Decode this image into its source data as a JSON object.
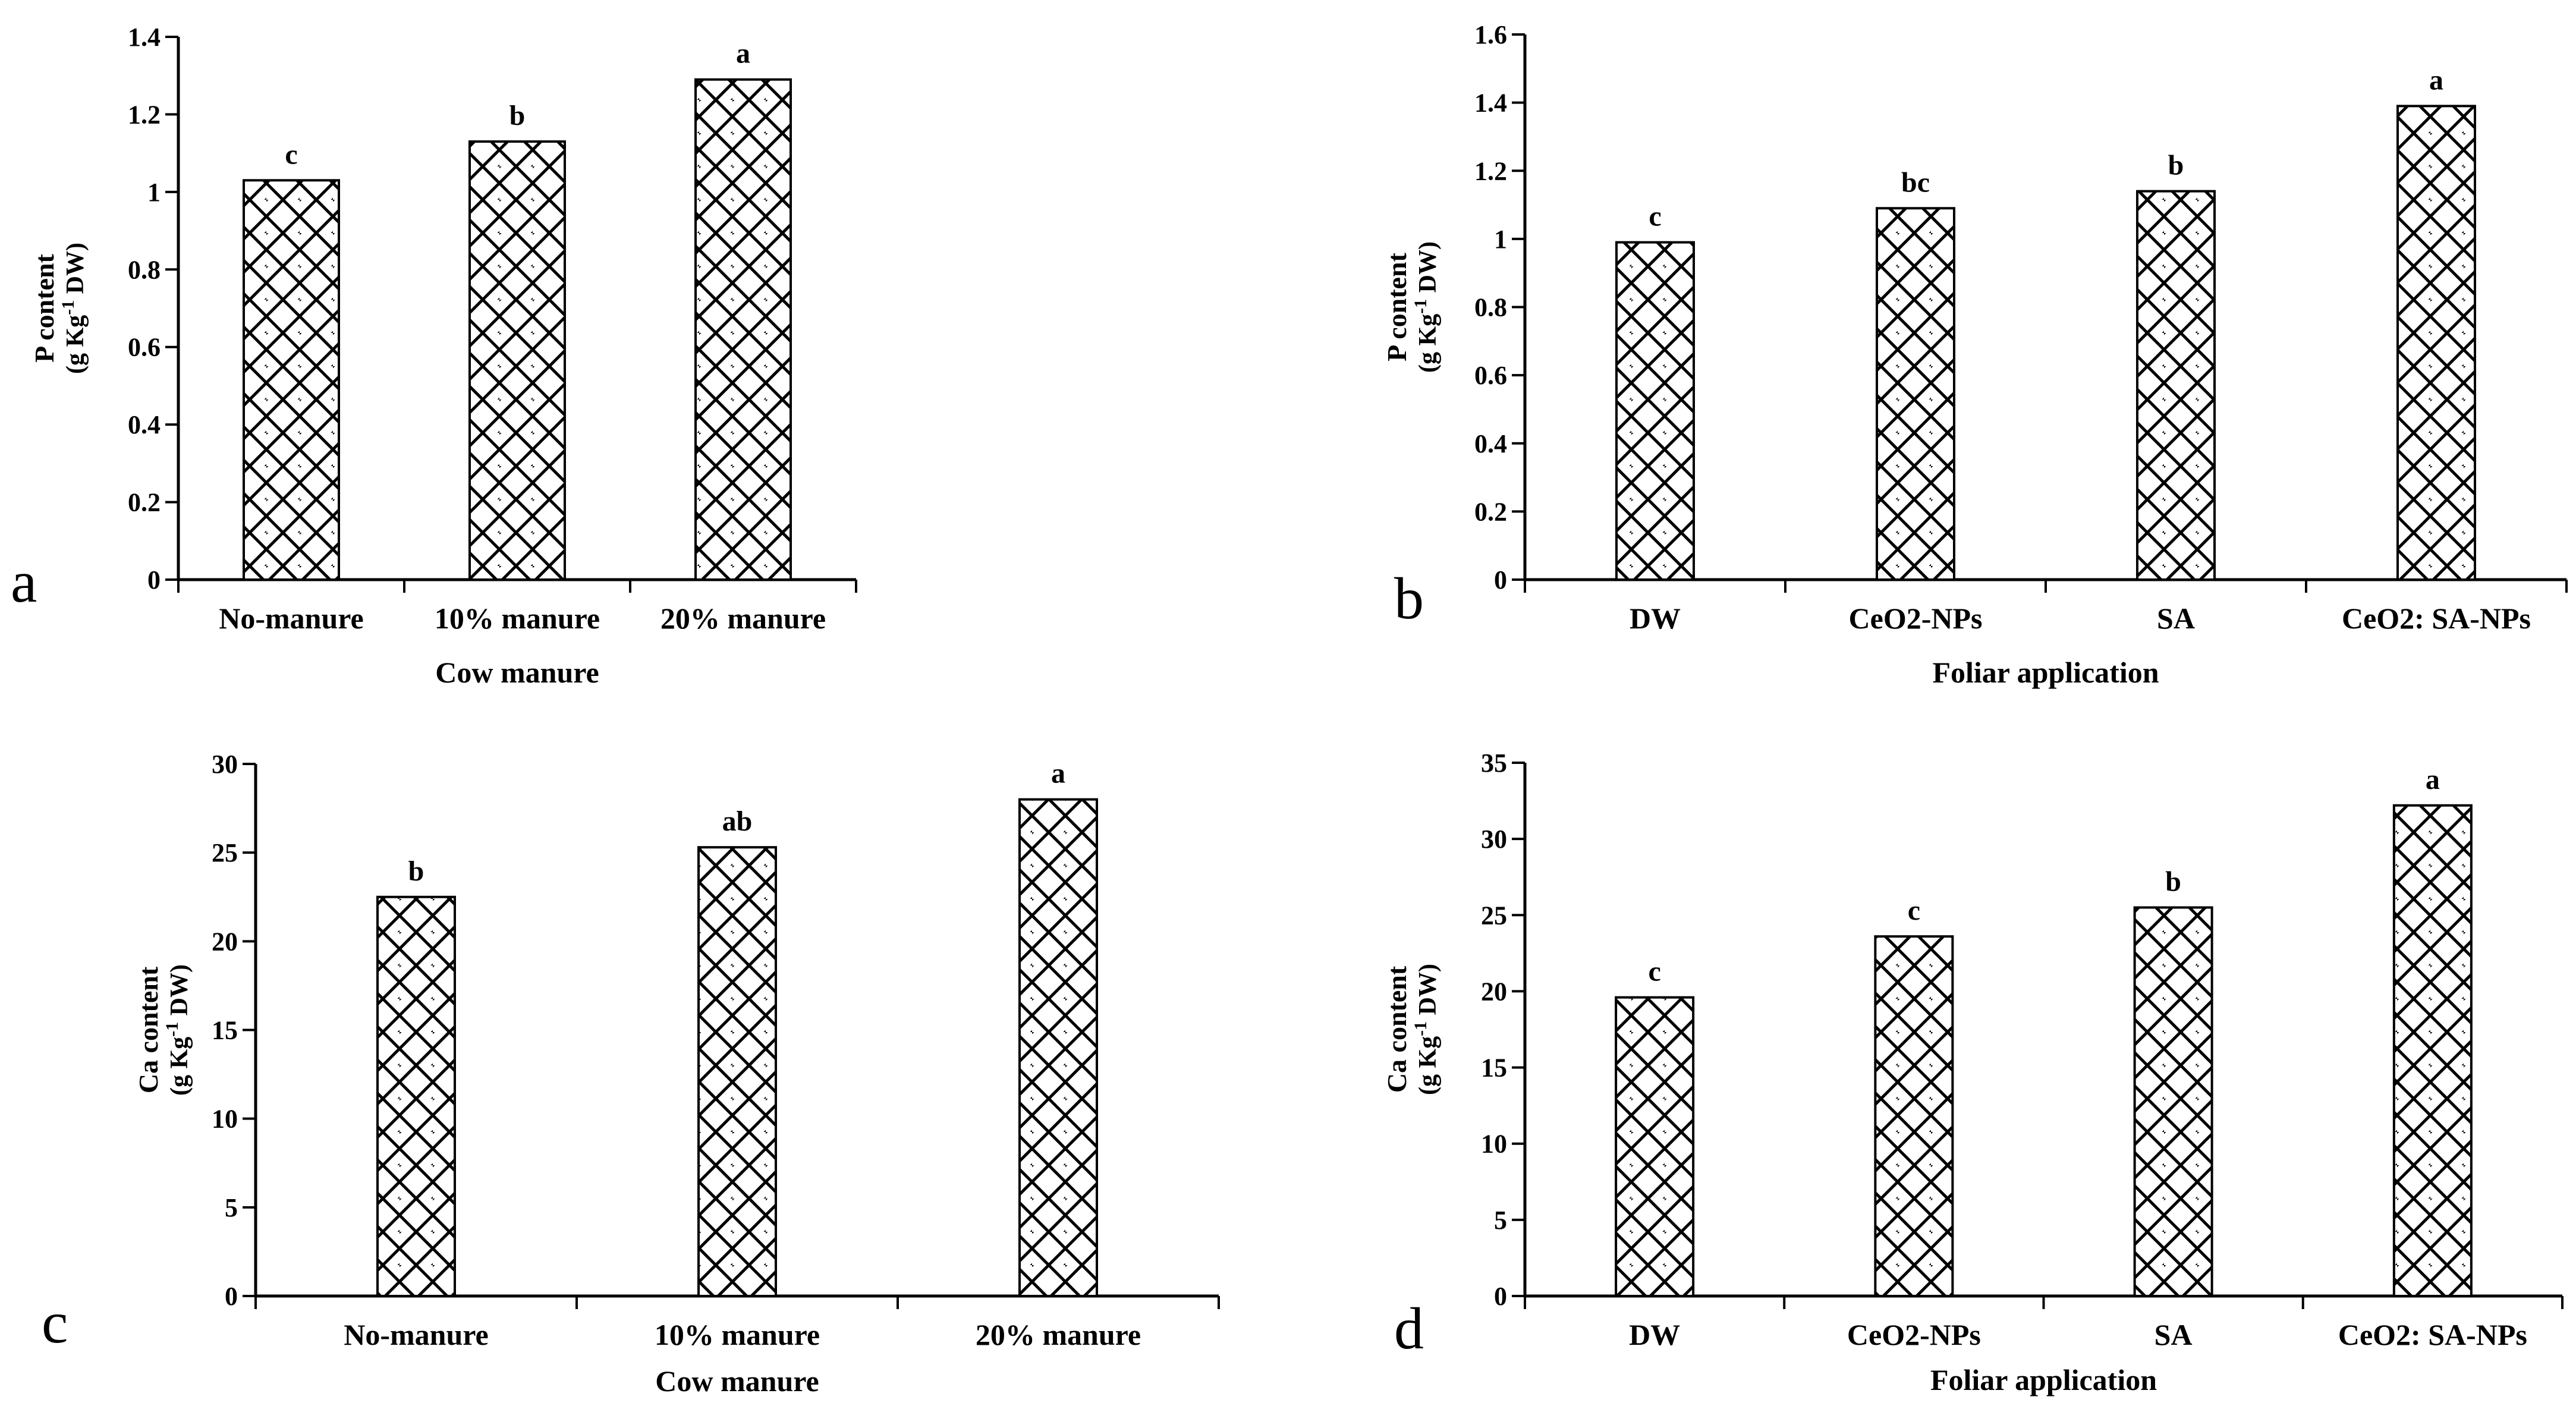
{
  "chart_data": [
    {
      "panel": "a",
      "type": "bar",
      "categories": [
        "No-manure",
        "10% manure",
        "20% manure"
      ],
      "values": [
        1.03,
        1.13,
        1.29
      ],
      "significance": [
        "c",
        "b",
        "a"
      ],
      "xlabel": "Cow manure",
      "ylabel_line1": "P content",
      "ylabel_line2_pre": "(g Kg",
      "ylabel_sup": "-1",
      "ylabel_line2_post": " DW)",
      "ylim": [
        0,
        1.4
      ],
      "yticks": [
        "0",
        "0.2",
        "0.4",
        "0.6",
        "0.8",
        "1",
        "1.2",
        "1.4"
      ],
      "grid": false
    },
    {
      "panel": "b",
      "type": "bar",
      "categories": [
        "DW",
        "CeO2-NPs",
        "SA",
        "CeO2: SA-NPs"
      ],
      "values": [
        0.99,
        1.09,
        1.14,
        1.39
      ],
      "significance": [
        "c",
        "bc",
        "b",
        "a"
      ],
      "xlabel": "Foliar application",
      "ylabel_line1": "P content",
      "ylabel_line2_pre": "(g Kg",
      "ylabel_sup": "-1",
      "ylabel_line2_post": " DW)",
      "ylim": [
        0,
        1.6
      ],
      "yticks": [
        "0",
        "0.2",
        "0.4",
        "0.6",
        "0.8",
        "1",
        "1.2",
        "1.4",
        "1.6"
      ],
      "grid": false
    },
    {
      "panel": "c",
      "type": "bar",
      "categories": [
        "No-manure",
        "10% manure",
        "20% manure"
      ],
      "values": [
        22.5,
        25.3,
        28.0
      ],
      "significance": [
        "b",
        "ab",
        "a"
      ],
      "xlabel": "Cow manure",
      "ylabel_line1": "Ca content",
      "ylabel_line2_pre": "(g Kg",
      "ylabel_sup": "-1",
      "ylabel_line2_post": " DW)",
      "ylim": [
        0,
        30
      ],
      "yticks": [
        "0",
        "5",
        "10",
        "15",
        "20",
        "25",
        "30"
      ],
      "grid": false
    },
    {
      "panel": "d",
      "type": "bar",
      "categories": [
        "DW",
        "CeO2-NPs",
        "SA",
        "CeO2: SA-NPs"
      ],
      "values": [
        19.6,
        23.6,
        25.5,
        32.2
      ],
      "significance": [
        "c",
        "c",
        "b",
        "a"
      ],
      "xlabel": "Foliar application",
      "ylabel_line1": "Ca content",
      "ylabel_line2_pre": "(g Kg",
      "ylabel_sup": "-1",
      "ylabel_line2_post": " DW)",
      "ylim": [
        0,
        35
      ],
      "yticks": [
        "0",
        "5",
        "10",
        "15",
        "20",
        "25",
        "30",
        "35"
      ],
      "grid": false
    }
  ]
}
